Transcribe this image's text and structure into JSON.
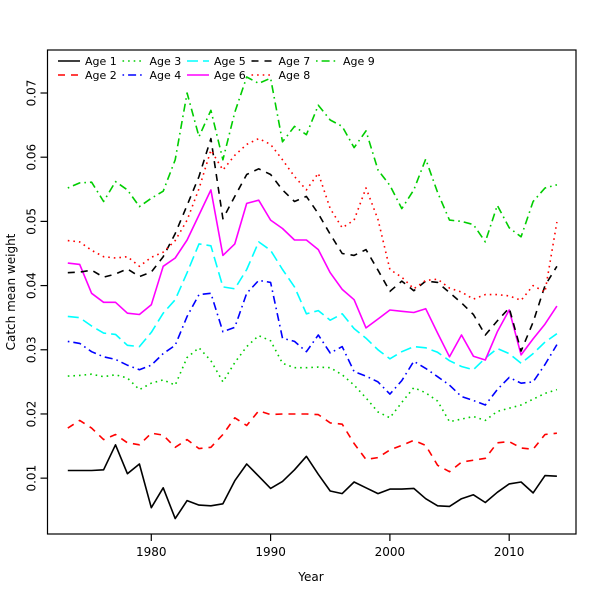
{
  "chart_data": {
    "type": "line",
    "title": "",
    "xlabel": "Year",
    "ylabel": "Catch mean weight",
    "grid": false,
    "legend_position": "top-left inside plot, 5 columns x 2 rows, no frame",
    "xlim": [
      1971.3,
      2015.6
    ],
    "ylim": [
      0.0013,
      0.0767
    ],
    "x_tick_values": [
      1980,
      1990,
      2000,
      2010
    ],
    "x_tick_labels": [
      "1980",
      "1990",
      "2000",
      "2010"
    ],
    "y_tick_values": [
      0.01,
      0.02,
      0.03,
      0.04,
      0.05,
      0.06,
      0.07
    ],
    "y_tick_labels": [
      "0.01",
      "0.02",
      "0.03",
      "0.04",
      "0.05",
      "0.06",
      "0.07"
    ],
    "x": [
      1973,
      1974,
      1975,
      1976,
      1977,
      1978,
      1979,
      1980,
      1981,
      1982,
      1983,
      1984,
      1985,
      1986,
      1987,
      1988,
      1989,
      1990,
      1991,
      1992,
      1993,
      1994,
      1995,
      1996,
      1997,
      1998,
      1999,
      2000,
      2001,
      2002,
      2003,
      2004,
      2005,
      2006,
      2007,
      2008,
      2009,
      2010,
      2011,
      2012,
      2013,
      2014
    ],
    "series": [
      {
        "name": "Age 1",
        "color": "#000000",
        "linestyle": "solid",
        "values": [
          0.0112,
          0.0112,
          0.0112,
          0.0113,
          0.0152,
          0.0107,
          0.0122,
          0.0054,
          0.0085,
          0.0037,
          0.0065,
          0.0058,
          0.0057,
          0.006,
          0.0096,
          0.0122,
          0.0103,
          0.0084,
          0.0095,
          0.0113,
          0.0134,
          0.0106,
          0.008,
          0.0076,
          0.0094,
          0.0085,
          0.0076,
          0.0083,
          0.0083,
          0.0084,
          0.0068,
          0.0057,
          0.0056,
          0.0068,
          0.0074,
          0.0062,
          0.0078,
          0.0091,
          0.0094,
          0.0077,
          0.0104,
          0.0103
        ]
      },
      {
        "name": "Age 2",
        "color": "#FF0000",
        "linestyle": "dashed",
        "values": [
          0.0178,
          0.019,
          0.0178,
          0.016,
          0.0168,
          0.0155,
          0.0152,
          0.017,
          0.0167,
          0.0148,
          0.016,
          0.0146,
          0.0148,
          0.0168,
          0.0194,
          0.0182,
          0.0205,
          0.0199,
          0.02,
          0.02,
          0.02,
          0.0199,
          0.0186,
          0.0184,
          0.0154,
          0.0129,
          0.0132,
          0.0144,
          0.0151,
          0.0159,
          0.0151,
          0.012,
          0.011,
          0.0125,
          0.0128,
          0.0131,
          0.0155,
          0.0157,
          0.0147,
          0.0145,
          0.0168,
          0.017
        ]
      },
      {
        "name": "Age 3",
        "color": "#00CD00",
        "linestyle": "dotted",
        "values": [
          0.0259,
          0.026,
          0.0262,
          0.0258,
          0.0261,
          0.0256,
          0.0238,
          0.0248,
          0.0253,
          0.0245,
          0.0288,
          0.0303,
          0.0283,
          0.025,
          0.028,
          0.0305,
          0.0322,
          0.0314,
          0.0279,
          0.0272,
          0.0272,
          0.0273,
          0.0272,
          0.0261,
          0.0245,
          0.0225,
          0.0203,
          0.0194,
          0.0218,
          0.0241,
          0.0233,
          0.022,
          0.0188,
          0.0192,
          0.0196,
          0.019,
          0.0204,
          0.0209,
          0.0214,
          0.0223,
          0.0232,
          0.0238
        ]
      },
      {
        "name": "Age 4",
        "color": "#0000FF",
        "linestyle": "dashdot",
        "values": [
          0.0313,
          0.031,
          0.0297,
          0.0289,
          0.0285,
          0.0276,
          0.0269,
          0.0276,
          0.0294,
          0.0307,
          0.0352,
          0.0386,
          0.0388,
          0.0328,
          0.0335,
          0.0388,
          0.0408,
          0.0405,
          0.0318,
          0.0313,
          0.0297,
          0.0323,
          0.0295,
          0.0305,
          0.0266,
          0.0259,
          0.025,
          0.0231,
          0.0252,
          0.0282,
          0.0271,
          0.0258,
          0.0245,
          0.0227,
          0.0221,
          0.0214,
          0.0238,
          0.0257,
          0.0248,
          0.025,
          0.0277,
          0.0308
        ]
      },
      {
        "name": "Age 5",
        "color": "#00FFFF",
        "linestyle": "longdash",
        "values": [
          0.0352,
          0.035,
          0.0337,
          0.0326,
          0.0324,
          0.0307,
          0.0305,
          0.0327,
          0.0357,
          0.0378,
          0.042,
          0.0465,
          0.0462,
          0.0398,
          0.0395,
          0.0425,
          0.0468,
          0.0455,
          0.0425,
          0.0398,
          0.0356,
          0.0361,
          0.0346,
          0.0356,
          0.0333,
          0.0318,
          0.03,
          0.0286,
          0.0297,
          0.0305,
          0.0303,
          0.0296,
          0.0283,
          0.0274,
          0.0269,
          0.0287,
          0.0302,
          0.0294,
          0.0279,
          0.0294,
          0.0312,
          0.0325
        ]
      },
      {
        "name": "Age 6",
        "color": "#FF00FF",
        "linestyle": "solid",
        "values": [
          0.0435,
          0.0433,
          0.0388,
          0.0374,
          0.0374,
          0.0357,
          0.0355,
          0.037,
          0.043,
          0.0443,
          0.0471,
          0.051,
          0.0549,
          0.0447,
          0.0465,
          0.0528,
          0.0533,
          0.0502,
          0.0489,
          0.0471,
          0.0471,
          0.0456,
          0.042,
          0.0394,
          0.0378,
          0.0334,
          0.0348,
          0.0362,
          0.036,
          0.0358,
          0.0364,
          0.0326,
          0.0289,
          0.0323,
          0.029,
          0.0284,
          0.0328,
          0.0362,
          0.0292,
          0.0317,
          0.034,
          0.0368
        ]
      },
      {
        "name": "Age 7",
        "color": "#000000",
        "linestyle": "dashed",
        "values": [
          0.042,
          0.0421,
          0.0424,
          0.0413,
          0.0418,
          0.0426,
          0.0414,
          0.0421,
          0.0445,
          0.0481,
          0.0525,
          0.057,
          0.0629,
          0.0504,
          0.0539,
          0.0573,
          0.0582,
          0.0573,
          0.0549,
          0.0531,
          0.0539,
          0.0512,
          0.048,
          0.045,
          0.0447,
          0.0456,
          0.0424,
          0.0391,
          0.0407,
          0.0392,
          0.0407,
          0.0405,
          0.0389,
          0.0373,
          0.0355,
          0.0323,
          0.0345,
          0.0365,
          0.0298,
          0.0343,
          0.04,
          0.043
        ]
      },
      {
        "name": "Age 8",
        "color": "#FF0000",
        "linestyle": "dotted",
        "values": [
          0.047,
          0.0468,
          0.0455,
          0.0445,
          0.0443,
          0.0445,
          0.043,
          0.0444,
          0.0452,
          0.047,
          0.0502,
          0.0551,
          0.0611,
          0.058,
          0.0603,
          0.062,
          0.0629,
          0.062,
          0.0596,
          0.057,
          0.0549,
          0.0575,
          0.052,
          0.049,
          0.0502,
          0.0552,
          0.0503,
          0.0425,
          0.0413,
          0.0395,
          0.0408,
          0.041,
          0.0396,
          0.039,
          0.0379,
          0.0386,
          0.0386,
          0.0384,
          0.0377,
          0.04,
          0.039,
          0.0499
        ]
      },
      {
        "name": "Age 9",
        "color": "#00CD00",
        "linestyle": "dashdot",
        "values": [
          0.0552,
          0.056,
          0.0561,
          0.0531,
          0.0562,
          0.0549,
          0.0523,
          0.0536,
          0.0547,
          0.0596,
          0.07,
          0.0632,
          0.0673,
          0.0596,
          0.067,
          0.0725,
          0.0715,
          0.0723,
          0.0624,
          0.0648,
          0.0635,
          0.0681,
          0.0658,
          0.0648,
          0.0615,
          0.0641,
          0.058,
          0.0556,
          0.052,
          0.0549,
          0.0597,
          0.0545,
          0.0502,
          0.05,
          0.0495,
          0.0468,
          0.0525,
          0.049,
          0.0476,
          0.0531,
          0.0552,
          0.0557
        ]
      }
    ]
  }
}
